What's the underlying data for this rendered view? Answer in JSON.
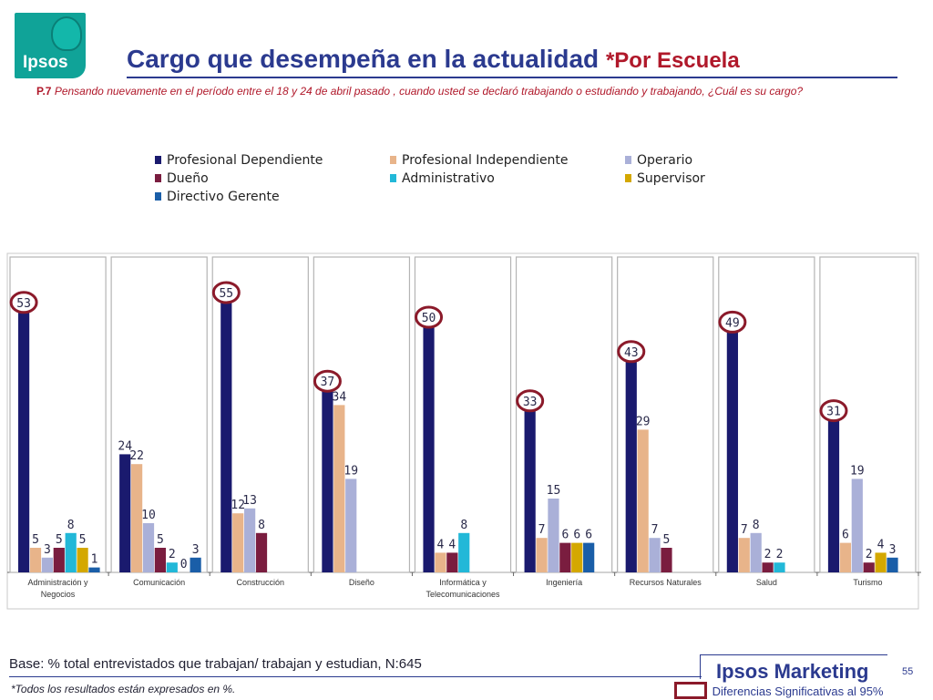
{
  "header": {
    "logo_text": "Ipsos",
    "title": "Cargo que desempeña en la actualidad",
    "subtitle": "*Por Escuela",
    "question_code": "P.7",
    "question_text": "Pensando nuevamente en el período entre el 18 y 24 de abril pasado , cuando usted se declaró trabajando o estudiando y trabajando, ¿Cuál es su cargo?"
  },
  "footer": {
    "base": "Base: % total entrevistados que trabajan/ trabajan y estudian, N:645",
    "footnote": "*Todos los resultados están expresados en %.",
    "brand": "Ipsos Marketing",
    "page_number": "55",
    "significance_legend": "Diferencias Significativas al 95%"
  },
  "colors": {
    "title": "#2b3a8f",
    "accent_red": "#b0182a",
    "logo": "#10a398",
    "significance_circle": "#8b1a2a"
  },
  "chart_data": {
    "type": "bar",
    "categories": [
      "Administración y Negocios",
      "Comunicación",
      "Construcción",
      "Diseño",
      "Informática y Telecomunicaciones",
      "Ingeniería",
      "Recursos Naturales",
      "Salud",
      "Turismo"
    ],
    "category_lines": [
      [
        "Administración y",
        "Negocios"
      ],
      [
        "Comunicación"
      ],
      [
        "Construcción"
      ],
      [
        "Diseño"
      ],
      [
        "Informática y",
        "Telecomunicaciones"
      ],
      [
        "Ingeniería"
      ],
      [
        "Recursos Naturales"
      ],
      [
        "Salud"
      ],
      [
        "Turismo"
      ]
    ],
    "ylim": [
      0,
      70
    ],
    "series": [
      {
        "name": "Profesional Dependiente",
        "color": "#1a1a6e",
        "values": [
          53,
          24,
          55,
          37,
          50,
          33,
          43,
          49,
          31
        ]
      },
      {
        "name": "Profesional Independiente",
        "color": "#e8b48a",
        "values": [
          5,
          22,
          12,
          34,
          4,
          7,
          29,
          7,
          6
        ]
      },
      {
        "name": "Operario",
        "color": "#aab0d8",
        "values": [
          3,
          10,
          13,
          19,
          null,
          15,
          7,
          8,
          19
        ]
      },
      {
        "name": "Dueño",
        "color": "#7a1d3f",
        "values": [
          5,
          5,
          8,
          null,
          4,
          6,
          5,
          2,
          2
        ]
      },
      {
        "name": "Administrativo",
        "color": "#22b8d8",
        "values": [
          8,
          2,
          null,
          null,
          8,
          null,
          null,
          2,
          null
        ]
      },
      {
        "name": "Supervisor",
        "color": "#d4a800",
        "values": [
          5,
          0,
          null,
          null,
          null,
          6,
          null,
          null,
          4
        ]
      },
      {
        "name": "Directivo Gerente",
        "color": "#1a5ea8",
        "values": [
          1,
          3,
          null,
          null,
          null,
          6,
          null,
          null,
          3
        ]
      }
    ],
    "significant": [
      {
        "category": "Administración y Negocios",
        "series": "Profesional Dependiente"
      },
      {
        "category": "Construcción",
        "series": "Profesional Dependiente"
      },
      {
        "category": "Diseño",
        "series": "Profesional Dependiente"
      },
      {
        "category": "Informática y Telecomunicaciones",
        "series": "Profesional Dependiente"
      },
      {
        "category": "Ingeniería",
        "series": "Profesional Dependiente"
      },
      {
        "category": "Recursos Naturales",
        "series": "Profesional Dependiente"
      },
      {
        "category": "Salud",
        "series": "Profesional Dependiente"
      },
      {
        "category": "Turismo",
        "series": "Profesional Dependiente"
      }
    ],
    "grid": false,
    "legend_position": "top"
  }
}
